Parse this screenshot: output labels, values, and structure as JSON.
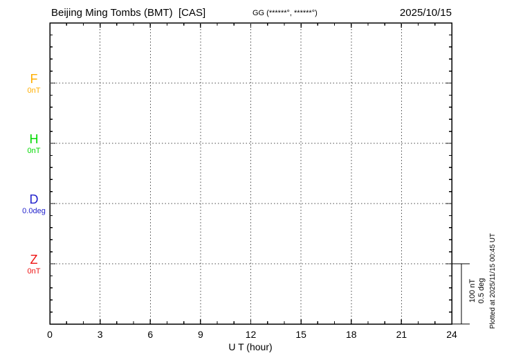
{
  "header": {
    "title": "Beijing Ming Tombs (BMT)  [CAS]",
    "coords": "GG (******°, ******°)",
    "date": "2025/10/15"
  },
  "channels": [
    {
      "id": "F",
      "label": "F",
      "unit": "0nT",
      "color": "#FFAE00"
    },
    {
      "id": "H",
      "label": "H",
      "unit": "0nT",
      "color": "#00D800"
    },
    {
      "id": "D",
      "label": "D",
      "unit": "0.0deg",
      "color": "#2222CC"
    },
    {
      "id": "Z",
      "label": "Z",
      "unit": "0nT",
      "color": "#EE1111"
    }
  ],
  "x_axis": {
    "label": "U T (hour)",
    "major_ticks": [
      0,
      3,
      6,
      9,
      12,
      15,
      18,
      21,
      24
    ],
    "minor_step": 1,
    "min": 0,
    "max": 24
  },
  "scale_bar": {
    "labels": [
      "100 nT",
      "0.5 deg"
    ]
  },
  "footer_note": "Plotted at 2025/11/15 00:45 UT",
  "chart_data": {
    "type": "line",
    "title": "Beijing Ming Tombs (BMT) [CAS] magnetogram",
    "date": "2025/10/15",
    "xlabel": "U T (hour)",
    "xlim": [
      0,
      24
    ],
    "x_major_ticks": [
      0,
      3,
      6,
      9,
      12,
      15,
      18,
      21,
      24
    ],
    "x_minor_step": 1,
    "grid": "dotted baselines at each channel zero level and vertical dotted lines every 3 hours",
    "legend_position": "left margin",
    "scale": {
      "bar_equals": "100 nT and 0.5 deg",
      "per_division": "20 nT / 0.1 deg"
    },
    "series": [
      {
        "name": "F",
        "unit": "nT",
        "baseline": 0,
        "baseline_label": "0nT",
        "color": "#FFAE00",
        "x": [],
        "values": []
      },
      {
        "name": "H",
        "unit": "nT",
        "baseline": 0,
        "baseline_label": "0nT",
        "color": "#00D800",
        "x": [],
        "values": []
      },
      {
        "name": "D",
        "unit": "deg",
        "baseline": 0.0,
        "baseline_label": "0.0deg",
        "color": "#2222CC",
        "x": [],
        "values": []
      },
      {
        "name": "Z",
        "unit": "nT",
        "baseline": 0,
        "baseline_label": "0nT",
        "color": "#EE1111",
        "x": [],
        "values": []
      }
    ],
    "note": "No trace data plotted for 2025/10/15 — empty grid only"
  }
}
